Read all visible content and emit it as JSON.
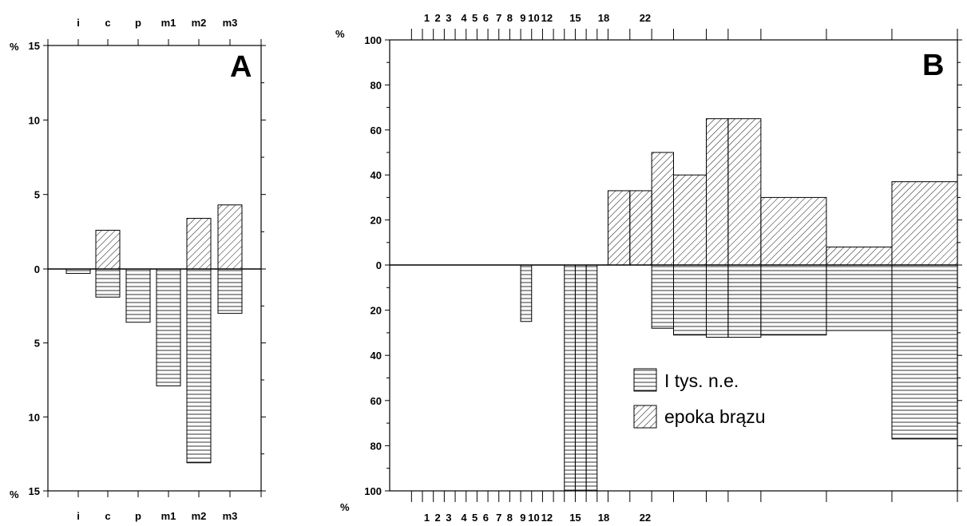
{
  "chart_data": [
    {
      "type": "bar",
      "panel_label": "A",
      "y_unit": "%",
      "categories": [
        "i",
        "c",
        "p",
        "m1",
        "m2",
        "m3"
      ],
      "y_ticks_up": [
        "0",
        "5",
        "10",
        "15"
      ],
      "y_ticks_down": [
        "5",
        "10",
        "15"
      ],
      "ylim_up": [
        0,
        15
      ],
      "ylim_down": [
        0,
        15
      ],
      "series": [
        {
          "pattern": "diagonal-hatch",
          "direction": "up",
          "values": [
            0,
            2.6,
            0,
            0,
            3.4,
            4.3
          ]
        },
        {
          "pattern": "horizontal-lines",
          "direction": "down",
          "values": [
            0.3,
            1.9,
            3.6,
            7.9,
            13.1,
            3.0
          ]
        }
      ],
      "grid": false
    },
    {
      "type": "bar",
      "panel_label": "B",
      "y_unit": "%",
      "x_ticks_top": [
        "1",
        "2",
        "3",
        "4",
        "5",
        "6",
        "7",
        "8",
        "9",
        "10",
        "12",
        "15",
        "18",
        "22"
      ],
      "x_ticks_bottom": [
        "1",
        "2",
        "3",
        "4",
        "5",
        "6",
        "7",
        "8",
        "9",
        "10",
        "12",
        "15",
        "18",
        "22"
      ],
      "y_ticks_up": [
        "0",
        "20",
        "40",
        "60",
        "80",
        "100"
      ],
      "y_ticks_down": [
        "20",
        "40",
        "60",
        "80",
        "100"
      ],
      "ylim_up": [
        0,
        100
      ],
      "ylim_down": [
        0,
        100
      ],
      "legend": {
        "placement": "lower-center",
        "items": [
          {
            "label": "I tys. n.e.",
            "pattern": "horizontal-lines"
          },
          {
            "label": "epoka brązu",
            "pattern": "diagonal-hatch"
          }
        ]
      },
      "bars": [
        {
          "x0": 10,
          "x1": 11,
          "up": 33,
          "down": 0
        },
        {
          "x0": 11,
          "x1": 12,
          "up": 33,
          "down": 0
        },
        {
          "x0": 12,
          "x1": 13,
          "up": 50,
          "down": 28
        },
        {
          "x0": 13,
          "x1": 14.5,
          "up": 40,
          "down": 31
        },
        {
          "x0": 14.5,
          "x1": 15.5,
          "up": 65,
          "down": 32
        },
        {
          "x0": 15.5,
          "x1": 17,
          "up": 65,
          "down": 32
        },
        {
          "x0": 17,
          "x1": 20,
          "up": 30,
          "down": 31
        },
        {
          "x0": 20,
          "x1": 23,
          "up": 8,
          "down": 29
        },
        {
          "x0": 23,
          "x1": 26,
          "up": 37,
          "down": 77
        }
      ],
      "low_bars": [
        {
          "x0": 6,
          "x1": 6.5,
          "down": 25
        },
        {
          "x0": 8,
          "x1": 8.5,
          "down": 100
        },
        {
          "x0": 8.5,
          "x1": 9,
          "down": 100
        },
        {
          "x0": 9,
          "x1": 9.5,
          "down": 100
        }
      ],
      "grid": false
    }
  ]
}
